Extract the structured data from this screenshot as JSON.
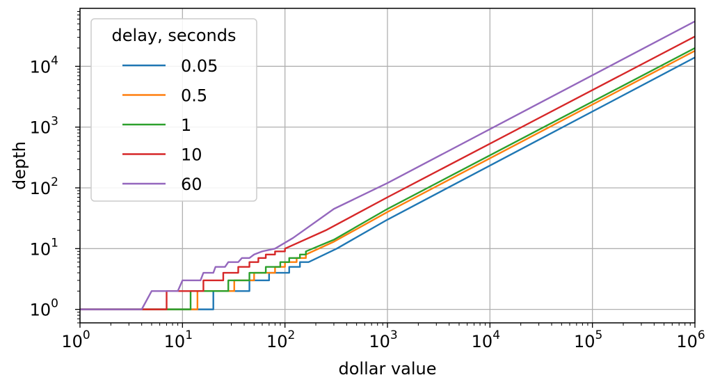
{
  "chart_data": {
    "type": "line",
    "xscale": "log",
    "yscale": "log",
    "xlabel": "dollar value",
    "ylabel": "depth",
    "xlim": [
      1,
      1000000
    ],
    "ylim": [
      0.6,
      90000
    ],
    "grid": true,
    "x_ticks": [
      {
        "value": 1,
        "base": "10",
        "exp": "0"
      },
      {
        "value": 10,
        "base": "10",
        "exp": "1"
      },
      {
        "value": 100,
        "base": "10",
        "exp": "2"
      },
      {
        "value": 1000,
        "base": "10",
        "exp": "3"
      },
      {
        "value": 10000,
        "base": "10",
        "exp": "4"
      },
      {
        "value": 100000,
        "base": "10",
        "exp": "5"
      },
      {
        "value": 1000000,
        "base": "10",
        "exp": "6"
      }
    ],
    "y_ticks": [
      {
        "value": 1,
        "base": "10",
        "exp": "0"
      },
      {
        "value": 10,
        "base": "10",
        "exp": "1"
      },
      {
        "value": 100,
        "base": "10",
        "exp": "2"
      },
      {
        "value": 1000,
        "base": "10",
        "exp": "3"
      },
      {
        "value": 10000,
        "base": "10",
        "exp": "4"
      }
    ],
    "legend": {
      "title": "delay, seconds",
      "position": "upper-left"
    },
    "series": [
      {
        "name": "0.05",
        "color": "#1f77b4",
        "coef": 0.22,
        "step_points": [
          [
            1,
            1
          ],
          [
            20,
            1
          ],
          [
            20,
            2
          ],
          [
            45,
            2
          ],
          [
            45,
            3
          ],
          [
            70,
            3
          ],
          [
            70,
            4
          ],
          [
            110,
            4
          ],
          [
            110,
            5
          ],
          [
            140,
            5
          ],
          [
            140,
            6
          ],
          [
            170,
            6
          ],
          [
            320,
            10
          ],
          [
            1000,
            30
          ],
          [
            1000000,
            14000
          ]
        ]
      },
      {
        "name": "0.5",
        "color": "#ff7f0e",
        "coef": 0.28,
        "step_points": [
          [
            1,
            1
          ],
          [
            14,
            1
          ],
          [
            14,
            2
          ],
          [
            32,
            2
          ],
          [
            32,
            3
          ],
          [
            50,
            3
          ],
          [
            50,
            4
          ],
          [
            80,
            4
          ],
          [
            80,
            5
          ],
          [
            100,
            5
          ],
          [
            100,
            6
          ],
          [
            130,
            6
          ],
          [
            130,
            7
          ],
          [
            160,
            7
          ],
          [
            160,
            8
          ],
          [
            300,
            13
          ],
          [
            1000,
            40
          ],
          [
            1000000,
            18000
          ]
        ]
      },
      {
        "name": "1",
        "color": "#2ca02c",
        "coef": 0.31,
        "step_points": [
          [
            1,
            1
          ],
          [
            12,
            1
          ],
          [
            12,
            2
          ],
          [
            28,
            2
          ],
          [
            28,
            3
          ],
          [
            45,
            3
          ],
          [
            45,
            4
          ],
          [
            65,
            4
          ],
          [
            65,
            5
          ],
          [
            90,
            5
          ],
          [
            90,
            6
          ],
          [
            110,
            6
          ],
          [
            110,
            7
          ],
          [
            140,
            7
          ],
          [
            140,
            8
          ],
          [
            160,
            8
          ],
          [
            160,
            9
          ],
          [
            300,
            14
          ],
          [
            1000,
            45
          ],
          [
            1000000,
            20000
          ]
        ]
      },
      {
        "name": "10",
        "color": "#d62728",
        "coef": 0.48,
        "step_points": [
          [
            1,
            1
          ],
          [
            7,
            1
          ],
          [
            7,
            2
          ],
          [
            16,
            2
          ],
          [
            16,
            3
          ],
          [
            25,
            3
          ],
          [
            25,
            4
          ],
          [
            35,
            4
          ],
          [
            35,
            5
          ],
          [
            45,
            5
          ],
          [
            45,
            6
          ],
          [
            55,
            6
          ],
          [
            55,
            7
          ],
          [
            65,
            7
          ],
          [
            65,
            8
          ],
          [
            80,
            8
          ],
          [
            80,
            9
          ],
          [
            100,
            9
          ],
          [
            100,
            10
          ],
          [
            250,
            20
          ],
          [
            1000,
            70
          ],
          [
            1000000,
            31000
          ]
        ]
      },
      {
        "name": "60",
        "color": "#9467bd",
        "coef": 0.82,
        "step_points": [
          [
            1,
            1
          ],
          [
            4,
            1
          ],
          [
            5,
            2
          ],
          [
            9,
            2
          ],
          [
            10,
            3
          ],
          [
            15,
            3
          ],
          [
            16,
            4
          ],
          [
            20,
            4
          ],
          [
            21,
            5
          ],
          [
            26,
            5
          ],
          [
            28,
            6
          ],
          [
            35,
            6
          ],
          [
            38,
            7
          ],
          [
            45,
            7
          ],
          [
            50,
            8
          ],
          [
            60,
            9
          ],
          [
            80,
            10
          ],
          [
            120,
            15
          ],
          [
            300,
            45
          ],
          [
            1000,
            120
          ],
          [
            1000000,
            55000
          ]
        ]
      }
    ]
  }
}
